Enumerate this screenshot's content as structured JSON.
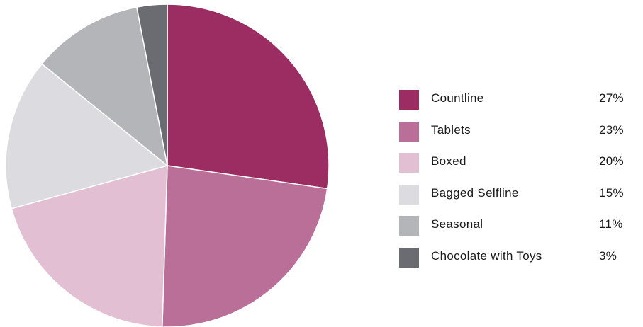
{
  "chart_data": {
    "type": "pie",
    "categories": [
      "Countline",
      "Tablets",
      "Boxed",
      "Bagged Selfline",
      "Seasonal",
      "Chocolate with Toys"
    ],
    "values": [
      27,
      23,
      20,
      15,
      11,
      3
    ],
    "value_labels": [
      "27%",
      "23%",
      "20%",
      "15%",
      "11%",
      "3%"
    ],
    "colors": [
      "#9b2d63",
      "#b96f97",
      "#e2bfd2",
      "#dcdce0",
      "#b3b5b8",
      "#6b6b72"
    ],
    "start_angle": "12 o'clock",
    "direction": "clockwise",
    "legend_position": "right",
    "title": ""
  }
}
